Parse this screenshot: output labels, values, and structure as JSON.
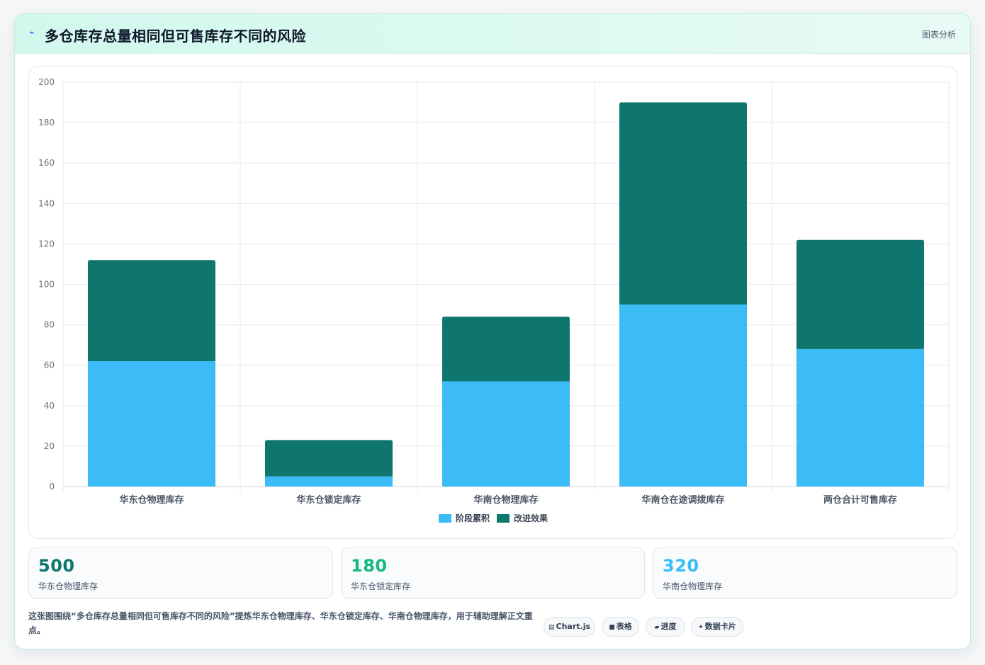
{
  "header": {
    "title_icon": "trend-icon",
    "title": "多仓库存总量相同但可售库存不同的风险",
    "link_label": "图表分析"
  },
  "colors": {
    "series_a": "#3bbcf7",
    "series_b": "#0f766e",
    "stat_1": "#0f766e",
    "stat_2": "#10b981",
    "stat_3": "#38bdf8"
  },
  "chart_data": {
    "type": "bar",
    "stacked": true,
    "categories": [
      "华东仓物理库存",
      "华东仓锁定库存",
      "华南仓物理库存",
      "华南仓在途调拨库存",
      "两仓合计可售库存"
    ],
    "series": [
      {
        "name": "阶段累积",
        "values": [
          62,
          5,
          52,
          90,
          68
        ]
      },
      {
        "name": "改进效果",
        "values": [
          50,
          18,
          32,
          100,
          54
        ]
      }
    ],
    "y_ticks": [
      0,
      20,
      40,
      60,
      80,
      100,
      120,
      140,
      160,
      180,
      200
    ],
    "ylim": [
      0,
      200
    ],
    "grid": true,
    "legend_position": "bottom"
  },
  "stats": [
    {
      "value": "500",
      "label": "华东仓物理库存"
    },
    {
      "value": "180",
      "label": "华东仓锁定库存"
    },
    {
      "value": "320",
      "label": "华南仓物理库存"
    }
  ],
  "note": "这张图围绕“多仓库存总量相同但可售库存不同的风险”提炼华东仓物理库存、华东仓锁定库存、华南仓物理库存，用于辅助理解正文重点。",
  "chips": [
    {
      "icon": "▤",
      "icon_name": "chartjs-icon",
      "label": "Chart.js"
    },
    {
      "icon": "■",
      "icon_name": "table-icon",
      "label": "表格"
    },
    {
      "icon": "▰",
      "icon_name": "progress-icon",
      "label": "进度"
    },
    {
      "icon": "✦",
      "icon_name": "data-card-icon",
      "label": "数据卡片"
    }
  ]
}
